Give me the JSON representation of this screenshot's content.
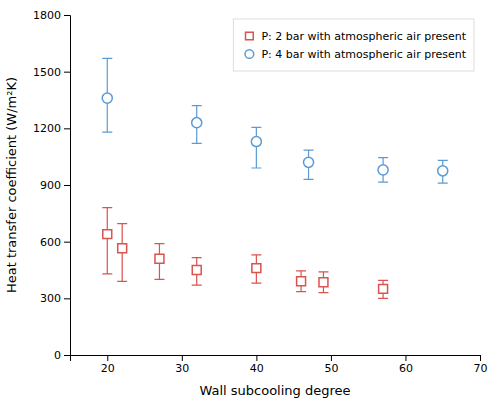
{
  "chart_data": {
    "type": "scatter",
    "xlabel": "Wall subcooling degree",
    "ylabel": "Heat transfer coefficient (W/m²K)",
    "xlim": [
      15,
      70
    ],
    "ylim": [
      0,
      1800
    ],
    "xticks": [
      20,
      30,
      40,
      50,
      60,
      70
    ],
    "yticks": [
      0,
      300,
      600,
      900,
      1200,
      1500,
      1800
    ],
    "legend": "upper-right",
    "series": [
      {
        "name": "P: 2 bar with atmospheric air present",
        "color": "#d9534f",
        "marker": "square",
        "x": [
          20,
          22,
          27,
          32,
          40,
          46,
          49,
          57
        ],
        "values": [
          640,
          565,
          510,
          450,
          460,
          390,
          385,
          350
        ],
        "yerr_lo": [
          210,
          175,
          110,
          80,
          80,
          55,
          55,
          50
        ],
        "yerr_hi": [
          140,
          130,
          80,
          65,
          70,
          55,
          55,
          45
        ]
      },
      {
        "name": "P: 4 bar with atmospheric air present",
        "color": "#5b9bd5",
        "marker": "circle",
        "x": [
          20,
          32,
          40,
          47,
          57,
          65
        ],
        "values": [
          1360,
          1230,
          1130,
          1020,
          980,
          975
        ],
        "yerr_lo": [
          180,
          110,
          140,
          90,
          65,
          65
        ],
        "yerr_hi": [
          210,
          90,
          75,
          65,
          65,
          55
        ]
      }
    ]
  }
}
